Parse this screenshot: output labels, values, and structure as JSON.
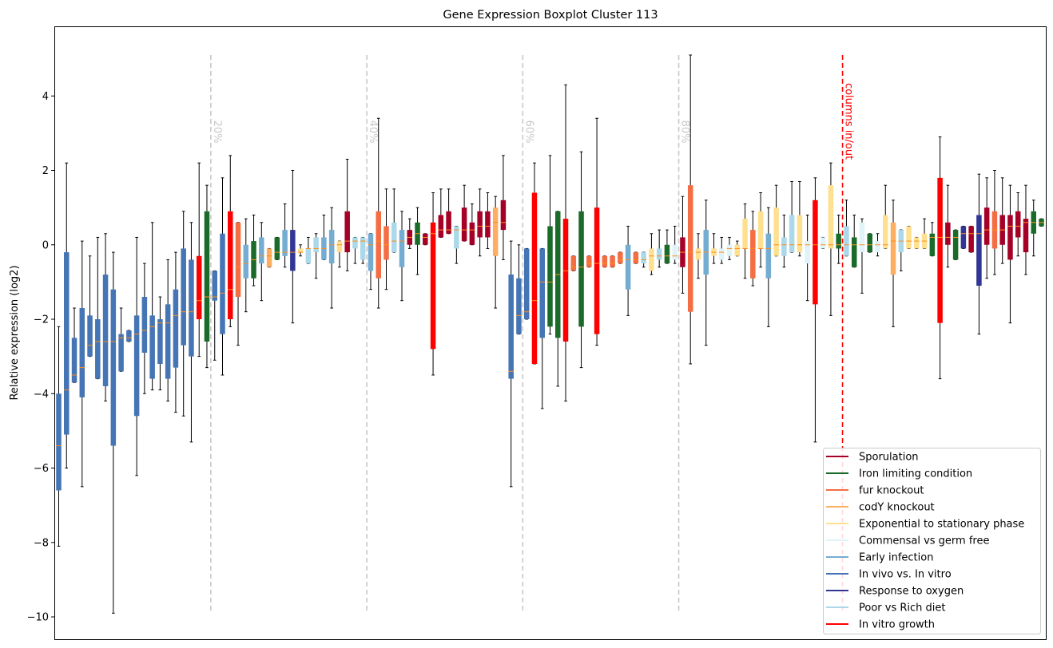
{
  "chart_data": {
    "type": "boxplot",
    "title": "Gene Expression Boxplot Cluster 113",
    "ylabel": "Relative expression (log2)",
    "xlabel": "",
    "ylim": [
      -10.6,
      5.85
    ],
    "yticks": [
      -10,
      -8,
      -6,
      -4,
      -2,
      0,
      2,
      4
    ],
    "grid": false,
    "legend_position": "lower right",
    "percentile_markers": [
      {
        "label": "20%",
        "after_box": 20
      },
      {
        "label": "40%",
        "after_box": 40
      },
      {
        "label": "60%",
        "after_box": 60
      },
      {
        "label": "80%",
        "after_box": 80
      }
    ],
    "split_marker": {
      "label": "columns in/out",
      "after_box": 101
    },
    "marker_bottom": -9.9,
    "marker_top": 5.1,
    "legend": [
      {
        "label": "Sporulation",
        "color": "#a50026"
      },
      {
        "label": "Iron limiting condition",
        "color": "#1a6b2a"
      },
      {
        "label": "fur knockout",
        "color": "#f46d43"
      },
      {
        "label": "codY knockout",
        "color": "#fdae61"
      },
      {
        "label": "Exponential to stationary phase",
        "color": "#fee090"
      },
      {
        "label": "Commensal vs germ free",
        "color": "#e0f3f8"
      },
      {
        "label": "Early infection",
        "color": "#74add1"
      },
      {
        "label": "In vivo vs. In vitro",
        "color": "#4575b4"
      },
      {
        "label": "Response to oxygen",
        "color": "#313695"
      },
      {
        "label": "Poor vs Rich diet",
        "color": "#abd9e9"
      },
      {
        "label": "In vitro growth",
        "color": "#ff0000"
      }
    ],
    "categories": [
      "Sporulation",
      "Iron limiting condition",
      "fur knockout",
      "codY knockout",
      "Exponential to stationary phase",
      "Commensal vs germ free",
      "Early infection",
      "In vivo vs. In vitro",
      "Response to oxygen",
      "Poor vs Rich diet",
      "In vitro growth"
    ],
    "boxes": [
      {
        "g": 7,
        "min": -8.1,
        "q1": -6.6,
        "med": -5.4,
        "q3": -4.0,
        "max": -2.2
      },
      {
        "g": 7,
        "min": -6.0,
        "q1": -5.1,
        "med": -3.9,
        "q3": -0.2,
        "max": 2.2
      },
      {
        "g": 7,
        "min": -3.7,
        "q1": -3.7,
        "med": -3.5,
        "q3": -2.5,
        "max": -1.7
      },
      {
        "g": 7,
        "min": -6.5,
        "q1": -4.1,
        "med": -3.3,
        "q3": -1.7,
        "max": 0.1
      },
      {
        "g": 7,
        "min": -3.0,
        "q1": -3.0,
        "med": -2.7,
        "q3": -1.9,
        "max": -0.3
      },
      {
        "g": 7,
        "min": -3.6,
        "q1": -3.6,
        "med": -2.6,
        "q3": -2.0,
        "max": 0.2
      },
      {
        "g": 7,
        "min": -4.2,
        "q1": -3.8,
        "med": -2.6,
        "q3": -0.8,
        "max": 0.3
      },
      {
        "g": 7,
        "min": -9.9,
        "q1": -5.4,
        "med": -2.6,
        "q3": -1.2,
        "max": -0.2
      },
      {
        "g": 7,
        "min": -3.4,
        "q1": -3.4,
        "med": -2.5,
        "q3": -2.4,
        "max": -1.7
      },
      {
        "g": 7,
        "min": -2.6,
        "q1": -2.6,
        "med": -2.5,
        "q3": -2.3,
        "max": -2.3
      },
      {
        "g": 7,
        "min": -6.2,
        "q1": -4.6,
        "med": -2.4,
        "q3": -1.9,
        "max": 0.2
      },
      {
        "g": 7,
        "min": -4.0,
        "q1": -2.9,
        "med": -2.3,
        "q3": -1.4,
        "max": -0.5
      },
      {
        "g": 7,
        "min": -3.9,
        "q1": -3.6,
        "med": -2.2,
        "q3": -1.9,
        "max": 0.6
      },
      {
        "g": 7,
        "min": -3.9,
        "q1": -3.2,
        "med": -2.1,
        "q3": -2.0,
        "max": -1.4
      },
      {
        "g": 7,
        "min": -4.2,
        "q1": -3.6,
        "med": -2.1,
        "q3": -1.6,
        "max": -0.4
      },
      {
        "g": 7,
        "min": -4.5,
        "q1": -3.3,
        "med": -1.9,
        "q3": -1.2,
        "max": -0.2
      },
      {
        "g": 7,
        "min": -4.6,
        "q1": -2.7,
        "med": -1.8,
        "q3": -0.1,
        "max": 0.9
      },
      {
        "g": 7,
        "min": -5.3,
        "q1": -3.0,
        "med": -1.8,
        "q3": -0.4,
        "max": 0.6
      },
      {
        "g": 10,
        "min": -3.0,
        "q1": -2.0,
        "med": -1.5,
        "q3": -0.3,
        "max": 2.2
      },
      {
        "g": 1,
        "min": -3.3,
        "q1": -2.6,
        "med": -1.4,
        "q3": 0.9,
        "max": 1.6
      },
      {
        "g": 7,
        "min": -3.1,
        "q1": -1.5,
        "med": -1.4,
        "q3": -0.7,
        "max": -0.7
      },
      {
        "g": 7,
        "min": -3.5,
        "q1": -2.4,
        "med": -1.3,
        "q3": 0.3,
        "max": 1.8
      },
      {
        "g": 10,
        "min": -2.2,
        "q1": -2.0,
        "med": -1.2,
        "q3": 0.9,
        "max": 2.4
      },
      {
        "g": 2,
        "min": -2.7,
        "q1": -1.4,
        "med": -0.6,
        "q3": 0.6,
        "max": 0.6
      },
      {
        "g": 6,
        "min": -1.8,
        "q1": -0.9,
        "med": -0.5,
        "q3": 0.0,
        "max": 0.7
      },
      {
        "g": 1,
        "min": -1.1,
        "q1": -0.9,
        "med": -0.4,
        "q3": 0.1,
        "max": 0.8
      },
      {
        "g": 6,
        "min": -1.5,
        "q1": -0.5,
        "med": -0.3,
        "q3": 0.2,
        "max": 0.6
      },
      {
        "g": 3,
        "min": -0.6,
        "q1": -0.6,
        "med": -0.3,
        "q3": -0.1,
        "max": -0.1
      },
      {
        "g": 1,
        "min": -0.4,
        "q1": -0.4,
        "med": -0.2,
        "q3": 0.2,
        "max": 0.2
      },
      {
        "g": 6,
        "min": -0.6,
        "q1": -0.3,
        "med": -0.2,
        "q3": 0.4,
        "max": 1.1
      },
      {
        "g": 8,
        "min": -2.1,
        "q1": -0.7,
        "med": -0.2,
        "q3": 0.4,
        "max": 2.0
      },
      {
        "g": 4,
        "min": -0.3,
        "q1": -0.2,
        "med": -0.2,
        "q3": -0.1,
        "max": 0.0
      },
      {
        "g": 9,
        "min": -0.5,
        "q1": -0.5,
        "med": -0.1,
        "q3": -0.1,
        "max": 0.2
      },
      {
        "g": 9,
        "min": -0.9,
        "q1": -0.2,
        "med": -0.1,
        "q3": 0.2,
        "max": 0.3
      },
      {
        "g": 6,
        "min": -0.4,
        "q1": -0.4,
        "med": -0.1,
        "q3": 0.2,
        "max": 0.8
      },
      {
        "g": 6,
        "min": -1.7,
        "q1": -0.5,
        "med": 0.0,
        "q3": 0.4,
        "max": 1.0
      },
      {
        "g": 4,
        "min": -0.6,
        "q1": -0.2,
        "med": 0.0,
        "q3": 0.1,
        "max": 0.1
      },
      {
        "g": 0,
        "min": -0.7,
        "q1": -0.2,
        "med": 0.1,
        "q3": 0.9,
        "max": 2.3
      },
      {
        "g": 9,
        "min": -0.5,
        "q1": -0.1,
        "med": 0.1,
        "q3": 0.2,
        "max": 0.2
      },
      {
        "g": 9,
        "min": -0.5,
        "q1": -0.4,
        "med": 0.1,
        "q3": 0.2,
        "max": 0.2
      },
      {
        "g": 6,
        "min": -1.2,
        "q1": -0.7,
        "med": 0.0,
        "q3": 0.3,
        "max": 0.3
      },
      {
        "g": 2,
        "min": -1.7,
        "q1": -0.9,
        "med": 0.1,
        "q3": 0.9,
        "max": 3.4
      },
      {
        "g": 2,
        "min": -1.2,
        "q1": -0.4,
        "med": 0.0,
        "q3": 0.5,
        "max": 1.5
      },
      {
        "g": 9,
        "min": -0.2,
        "q1": -0.2,
        "med": 0.1,
        "q3": 0.6,
        "max": 1.5
      },
      {
        "g": 6,
        "min": -1.5,
        "q1": -0.6,
        "med": 0.1,
        "q3": 0.4,
        "max": 0.9
      },
      {
        "g": 0,
        "min": -0.1,
        "q1": 0.0,
        "med": 0.2,
        "q3": 0.4,
        "max": 0.7
      },
      {
        "g": 1,
        "min": -0.8,
        "q1": 0.0,
        "med": 0.3,
        "q3": 0.6,
        "max": 1.0
      },
      {
        "g": 0,
        "min": 0.0,
        "q1": 0.0,
        "med": 0.2,
        "q3": 0.3,
        "max": 0.3
      },
      {
        "g": 10,
        "min": -3.5,
        "q1": -2.8,
        "med": 0.3,
        "q3": 0.6,
        "max": 1.4
      },
      {
        "g": 0,
        "min": 0.2,
        "q1": 0.2,
        "med": 0.4,
        "q3": 0.8,
        "max": 1.5
      },
      {
        "g": 0,
        "min": 0.3,
        "q1": 0.3,
        "med": 0.4,
        "q3": 0.9,
        "max": 1.5
      },
      {
        "g": 9,
        "min": -0.5,
        "q1": -0.1,
        "med": 0.4,
        "q3": 0.5,
        "max": 0.5
      },
      {
        "g": 0,
        "min": 0.1,
        "q1": 0.1,
        "med": 0.4,
        "q3": 1.0,
        "max": 1.6
      },
      {
        "g": 0,
        "min": 0.0,
        "q1": 0.0,
        "med": 0.4,
        "q3": 0.6,
        "max": 1.1
      },
      {
        "g": 0,
        "min": -0.3,
        "q1": 0.2,
        "med": 0.5,
        "q3": 0.9,
        "max": 1.5
      },
      {
        "g": 0,
        "min": -0.1,
        "q1": 0.2,
        "med": 0.5,
        "q3": 0.9,
        "max": 1.4
      },
      {
        "g": 3,
        "min": -1.7,
        "q1": -0.3,
        "med": 0.6,
        "q3": 1.0,
        "max": 1.3
      },
      {
        "g": 0,
        "min": -0.4,
        "q1": 0.4,
        "med": 0.6,
        "q3": 1.2,
        "max": 2.4
      },
      {
        "g": 7,
        "min": -6.5,
        "q1": -3.6,
        "med": -3.4,
        "q3": -0.8,
        "max": 0.1
      },
      {
        "g": 7,
        "min": -2.4,
        "q1": -2.4,
        "med": -1.9,
        "q3": -0.9,
        "max": 0.0
      },
      {
        "g": 7,
        "min": -2.0,
        "q1": -2.0,
        "med": -1.8,
        "q3": -0.1,
        "max": -0.1
      },
      {
        "g": 10,
        "min": -3.2,
        "q1": -3.2,
        "med": -1.5,
        "q3": 1.4,
        "max": 2.2
      },
      {
        "g": 7,
        "min": -4.4,
        "q1": -2.5,
        "med": -1.0,
        "q3": -0.1,
        "max": -0.1
      },
      {
        "g": 1,
        "min": -2.4,
        "q1": -2.2,
        "med": -1.0,
        "q3": 0.5,
        "max": 2.4
      },
      {
        "g": 1,
        "min": -3.8,
        "q1": -2.5,
        "med": -0.8,
        "q3": 0.9,
        "max": 0.9
      },
      {
        "g": 10,
        "min": -4.2,
        "q1": -2.6,
        "med": -0.7,
        "q3": 0.7,
        "max": 4.3
      },
      {
        "g": 2,
        "min": -0.7,
        "q1": -0.7,
        "med": -0.6,
        "q3": -0.3,
        "max": -0.3
      },
      {
        "g": 1,
        "min": -3.3,
        "q1": -2.2,
        "med": -0.6,
        "q3": 0.9,
        "max": 2.5
      },
      {
        "g": 2,
        "min": -0.6,
        "q1": -0.6,
        "med": -0.5,
        "q3": -0.3,
        "max": -0.3
      },
      {
        "g": 10,
        "min": -2.7,
        "q1": -2.4,
        "med": -0.5,
        "q3": 1.0,
        "max": 3.4
      },
      {
        "g": 2,
        "min": -0.6,
        "q1": -0.6,
        "med": -0.5,
        "q3": -0.3,
        "max": -0.3
      },
      {
        "g": 2,
        "min": -0.6,
        "q1": -0.6,
        "med": -0.5,
        "q3": -0.3,
        "max": -0.3
      },
      {
        "g": 2,
        "min": -0.5,
        "q1": -0.5,
        "med": -0.4,
        "q3": -0.2,
        "max": -0.2
      },
      {
        "g": 6,
        "min": -1.9,
        "q1": -1.2,
        "med": -0.4,
        "q3": 0.0,
        "max": 0.5
      },
      {
        "g": 2,
        "min": -0.5,
        "q1": -0.5,
        "med": -0.4,
        "q3": -0.2,
        "max": -0.2
      },
      {
        "g": 9,
        "min": -0.6,
        "q1": -0.5,
        "med": -0.4,
        "q3": -0.2,
        "max": -0.2
      },
      {
        "g": 4,
        "min": -0.8,
        "q1": -0.7,
        "med": -0.3,
        "q3": -0.1,
        "max": 0.3
      },
      {
        "g": 9,
        "min": -0.6,
        "q1": -0.4,
        "med": -0.3,
        "q3": -0.1,
        "max": 0.4
      },
      {
        "g": 1,
        "min": -0.5,
        "q1": -0.5,
        "med": -0.3,
        "q3": 0.0,
        "max": 0.4
      },
      {
        "g": 5,
        "min": -0.5,
        "q1": -0.4,
        "med": -0.3,
        "q3": 0.0,
        "max": 0.5
      },
      {
        "g": 0,
        "min": -1.3,
        "q1": -0.6,
        "med": -0.2,
        "q3": 0.2,
        "max": 1.3
      },
      {
        "g": 2,
        "min": -3.2,
        "q1": -1.8,
        "med": -0.2,
        "q3": 1.6,
        "max": 5.1
      },
      {
        "g": 4,
        "min": -0.9,
        "q1": -0.4,
        "med": -0.2,
        "q3": -0.1,
        "max": 0.3
      },
      {
        "g": 6,
        "min": -2.7,
        "q1": -0.8,
        "med": -0.2,
        "q3": 0.4,
        "max": 1.2
      },
      {
        "g": 4,
        "min": -0.5,
        "q1": -0.3,
        "med": -0.2,
        "q3": -0.1,
        "max": 0.3
      },
      {
        "g": 5,
        "min": -0.5,
        "q1": -0.4,
        "med": -0.2,
        "q3": -0.1,
        "max": 0.2
      },
      {
        "g": 5,
        "min": -0.4,
        "q1": -0.3,
        "med": -0.1,
        "q3": 0.0,
        "max": 0.2
      },
      {
        "g": 4,
        "min": -0.3,
        "q1": -0.3,
        "med": -0.1,
        "q3": 0.0,
        "max": 0.1
      },
      {
        "g": 4,
        "min": -0.9,
        "q1": -0.1,
        "med": -0.1,
        "q3": 0.7,
        "max": 1.1
      },
      {
        "g": 2,
        "min": -1.1,
        "q1": -0.9,
        "med": -0.1,
        "q3": 0.4,
        "max": 0.9
      },
      {
        "g": 4,
        "min": -0.6,
        "q1": -0.1,
        "med": -0.1,
        "q3": 0.9,
        "max": 1.4
      },
      {
        "g": 6,
        "min": -2.2,
        "q1": -0.9,
        "med": -0.1,
        "q3": 0.3,
        "max": 1.0
      },
      {
        "g": 4,
        "min": -0.3,
        "q1": -0.3,
        "med": 0.0,
        "q3": 1.0,
        "max": 1.6
      },
      {
        "g": 9,
        "min": -0.6,
        "q1": -0.3,
        "med": 0.0,
        "q3": 0.2,
        "max": 0.8
      },
      {
        "g": 9,
        "min": -0.2,
        "q1": -0.2,
        "med": 0.0,
        "q3": 0.8,
        "max": 1.7
      },
      {
        "g": 4,
        "min": -0.3,
        "q1": -0.2,
        "med": 0.0,
        "q3": 0.8,
        "max": 1.7
      },
      {
        "g": 5,
        "min": -1.5,
        "q1": -0.5,
        "med": 0.0,
        "q3": 0.1,
        "max": 0.8
      },
      {
        "g": 10,
        "min": -5.3,
        "q1": -1.6,
        "med": 0.0,
        "q3": 1.2,
        "max": 1.8
      },
      {
        "g": 5,
        "min": -0.1,
        "q1": -0.1,
        "med": 0.0,
        "q3": 0.2,
        "max": 0.2
      },
      {
        "g": 4,
        "min": -1.9,
        "q1": -0.1,
        "med": 0.0,
        "q3": 1.6,
        "max": 2.2
      },
      {
        "g": 1,
        "min": -0.5,
        "q1": -0.1,
        "med": 0.0,
        "q3": 0.3,
        "max": 0.8
      },
      {
        "g": 9,
        "min": -0.3,
        "q1": -0.3,
        "med": 0.0,
        "q3": 0.5,
        "max": 1.2
      },
      {
        "g": 1,
        "min": -0.6,
        "q1": -0.6,
        "med": 0.0,
        "q3": 0.2,
        "max": 0.8
      },
      {
        "g": 5,
        "min": -1.3,
        "q1": -0.2,
        "med": 0.0,
        "q3": 0.6,
        "max": 0.7
      },
      {
        "g": 1,
        "min": -0.2,
        "q1": -0.2,
        "med": 0.0,
        "q3": 0.3,
        "max": 0.3
      },
      {
        "g": 5,
        "min": -0.3,
        "q1": -0.2,
        "med": 0.0,
        "q3": 0.1,
        "max": 0.3
      },
      {
        "g": 4,
        "min": -0.1,
        "q1": -0.1,
        "med": 0.0,
        "q3": 0.8,
        "max": 1.6
      },
      {
        "g": 3,
        "min": -2.2,
        "q1": -0.8,
        "med": 0.1,
        "q3": 0.6,
        "max": 1.2
      },
      {
        "g": 9,
        "min": -0.7,
        "q1": -0.2,
        "med": 0.1,
        "q3": 0.4,
        "max": 0.4
      },
      {
        "g": 4,
        "min": -0.1,
        "q1": -0.1,
        "med": 0.1,
        "q3": 0.5,
        "max": 0.5
      },
      {
        "g": 4,
        "min": -0.1,
        "q1": -0.1,
        "med": 0.1,
        "q3": 0.2,
        "max": 0.2
      },
      {
        "g": 4,
        "min": -0.1,
        "q1": -0.1,
        "med": 0.1,
        "q3": 0.3,
        "max": 0.7
      },
      {
        "g": 1,
        "min": -0.3,
        "q1": -0.3,
        "med": 0.2,
        "q3": 0.3,
        "max": 0.6
      },
      {
        "g": 10,
        "min": -3.6,
        "q1": -2.1,
        "med": 0.2,
        "q3": 1.8,
        "max": 2.9
      },
      {
        "g": 0,
        "min": -0.6,
        "q1": 0.0,
        "med": 0.2,
        "q3": 0.6,
        "max": 1.6
      },
      {
        "g": 1,
        "min": -0.4,
        "q1": -0.4,
        "med": 0.2,
        "q3": 0.4,
        "max": 0.4
      },
      {
        "g": 8,
        "min": -0.1,
        "q1": -0.1,
        "med": 0.3,
        "q3": 0.5,
        "max": 0.5
      },
      {
        "g": 0,
        "min": -0.2,
        "q1": -0.2,
        "med": 0.3,
        "q3": 0.5,
        "max": 0.5
      },
      {
        "g": 8,
        "min": -2.4,
        "q1": -1.1,
        "med": 0.3,
        "q3": 0.8,
        "max": 1.9
      },
      {
        "g": 0,
        "min": -0.9,
        "q1": 0.0,
        "med": 0.4,
        "q3": 1.0,
        "max": 1.8
      },
      {
        "g": 2,
        "min": -0.8,
        "q1": -0.1,
        "med": 0.4,
        "q3": 0.9,
        "max": 2.0
      },
      {
        "g": 0,
        "min": -0.5,
        "q1": 0.0,
        "med": 0.4,
        "q3": 0.8,
        "max": 1.8
      },
      {
        "g": 0,
        "min": -2.1,
        "q1": -0.4,
        "med": 0.5,
        "q3": 0.8,
        "max": 1.6
      },
      {
        "g": 0,
        "min": -0.3,
        "q1": 0.2,
        "med": 0.5,
        "q3": 0.9,
        "max": 1.4
      },
      {
        "g": 0,
        "min": -0.8,
        "q1": -0.2,
        "med": 0.6,
        "q3": 0.7,
        "max": 1.6
      },
      {
        "g": 1,
        "min": -0.3,
        "q1": 0.3,
        "med": 0.6,
        "q3": 0.9,
        "max": 1.2
      },
      {
        "g": 1,
        "min": 0.5,
        "q1": 0.5,
        "med": 0.6,
        "q3": 0.7,
        "max": 0.7
      }
    ]
  }
}
